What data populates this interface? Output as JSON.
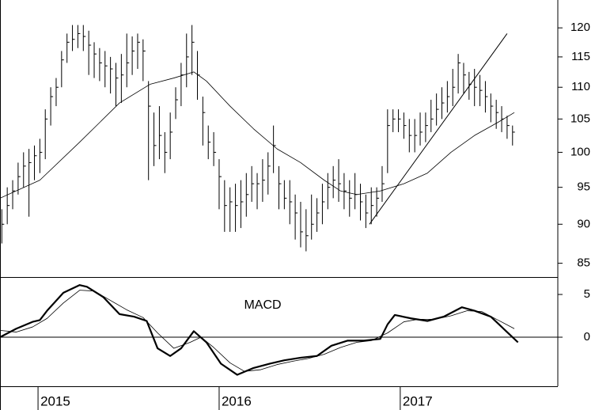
{
  "chart_data": [
    {
      "type": "ohlc",
      "log_scale": true,
      "color": "#000000",
      "xlim": [
        2014.79,
        2017.87
      ],
      "ylim": [
        83.3,
        125
      ],
      "yticks": [
        85,
        90,
        95,
        100,
        105,
        110,
        115,
        120
      ],
      "x": [
        2014.8,
        2014.83,
        2014.86,
        2014.89,
        2014.92,
        2014.95,
        2014.98,
        2015.01,
        2015.04,
        2015.07,
        2015.1,
        2015.13,
        2015.16,
        2015.19,
        2015.22,
        2015.25,
        2015.28,
        2015.31,
        2015.34,
        2015.37,
        2015.4,
        2015.43,
        2015.46,
        2015.49,
        2015.52,
        2015.55,
        2015.58,
        2015.61,
        2015.64,
        2015.67,
        2015.7,
        2015.73,
        2015.76,
        2015.79,
        2015.82,
        2015.85,
        2015.88,
        2015.91,
        2015.94,
        2015.97,
        2016,
        2016.03,
        2016.06,
        2016.09,
        2016.12,
        2016.15,
        2016.18,
        2016.21,
        2016.24,
        2016.27,
        2016.3,
        2016.33,
        2016.36,
        2016.39,
        2016.42,
        2016.45,
        2016.48,
        2016.51,
        2016.54,
        2016.57,
        2016.6,
        2016.63,
        2016.66,
        2016.69,
        2016.72,
        2016.75,
        2016.78,
        2016.81,
        2016.84,
        2016.87,
        2016.9,
        2016.93,
        2016.96,
        2016.99,
        2017.02,
        2017.05,
        2017.08,
        2017.11,
        2017.14,
        2017.17,
        2017.2,
        2017.23,
        2017.26,
        2017.29,
        2017.32,
        2017.35,
        2017.38,
        2017.41,
        2017.44,
        2017.47,
        2017.5,
        2017.53,
        2017.56,
        2017.59,
        2017.62
      ],
      "high": [
        92,
        95,
        96,
        98.5,
        100,
        100.5,
        101,
        102,
        106.5,
        110,
        111.5,
        116,
        119,
        120.5,
        120.5,
        120.5,
        119.5,
        117.5,
        116.5,
        116,
        115,
        114,
        115.5,
        119,
        118.5,
        119,
        118,
        111,
        106,
        107,
        103,
        106,
        110,
        114,
        119,
        120.5,
        116,
        108.5,
        104,
        103,
        99,
        96,
        95,
        95.5,
        96,
        97,
        98,
        97,
        99,
        100,
        104,
        98,
        96,
        96,
        94,
        93,
        92,
        94,
        93.5,
        95.5,
        97,
        98,
        99,
        97,
        96,
        97,
        95.5,
        94,
        95,
        95,
        98,
        106.5,
        106.5,
        106.5,
        106,
        105,
        105,
        106,
        106,
        108,
        109,
        110,
        111,
        113,
        115.5,
        114,
        112.5,
        113,
        112,
        111,
        109,
        108,
        107,
        105.5,
        104
      ],
      "low": [
        87.5,
        90,
        92,
        94,
        95,
        91,
        96,
        97,
        99,
        104,
        107,
        110,
        114,
        116,
        116.5,
        116,
        112,
        111.5,
        111,
        110,
        109,
        107,
        107.5,
        110,
        112,
        113,
        111,
        96,
        98,
        99,
        97,
        99,
        105,
        107,
        110,
        112,
        108,
        101,
        99,
        98,
        92,
        89,
        89,
        89,
        89.5,
        91,
        93,
        92,
        93,
        94,
        97,
        92,
        92,
        90,
        88,
        87,
        86.5,
        88,
        89,
        90,
        92,
        93.5,
        93,
        92,
        91,
        92,
        90.5,
        89.5,
        90,
        91,
        93,
        97,
        103,
        103,
        102,
        100,
        100,
        101,
        101.5,
        103,
        104,
        105,
        106,
        107,
        109,
        109,
        108,
        107,
        107,
        106,
        104.5,
        103.5,
        103,
        102,
        101
      ],
      "close": [
        90,
        92.5,
        94.5,
        96.5,
        98,
        98.5,
        99.5,
        100,
        105,
        108.5,
        110,
        114.5,
        117.5,
        118,
        119,
        118.5,
        117,
        115.5,
        114,
        113.5,
        113,
        111.5,
        112,
        114,
        116,
        117.5,
        116,
        107,
        101,
        102.5,
        100,
        103,
        108,
        112,
        115,
        117.5,
        112,
        106,
        101.5,
        100,
        96.5,
        92.5,
        93,
        92.5,
        93,
        94,
        95.5,
        95.5,
        96,
        98,
        101,
        95.5,
        93.5,
        93,
        91.5,
        89,
        88.5,
        90,
        91.5,
        93,
        95,
        96,
        95.5,
        94.5,
        93.5,
        94,
        93,
        91.5,
        92.5,
        93.5,
        95.5,
        104,
        105,
        105,
        104,
        102.5,
        102.5,
        103,
        104,
        105,
        106.5,
        107.5,
        108.5,
        110,
        114,
        112,
        110.5,
        110,
        109.5,
        108.5,
        107,
        106,
        105,
        104,
        103
      ],
      "overlays": [
        {
          "color": "#000000",
          "line_width": 0.8,
          "x": [
            2014.79,
            2015.01,
            2015.23,
            2015.45,
            2015.62,
            2015.75,
            2015.86,
            2015.93,
            2016.06,
            2016.19,
            2016.32,
            2016.45,
            2016.58,
            2016.67,
            2016.76,
            2016.89,
            2017.02,
            2017.15,
            2017.28,
            2017.41,
            2017.54,
            2017.63
          ],
          "values": [
            93.5,
            96,
            101.5,
            107.5,
            110.5,
            111.5,
            112.5,
            111,
            107,
            103.5,
            100.5,
            98.5,
            96,
            94.5,
            94,
            94.5,
            95.5,
            97,
            100,
            102.5,
            104.5,
            106
          ]
        },
        {
          "color": "#000000",
          "line_width": 1,
          "x": [
            2016.83,
            2017.59
          ],
          "values": [
            90,
            119
          ]
        }
      ]
    },
    {
      "type": "line",
      "annotation": "MACD",
      "zero_line": true,
      "xlim": [
        2014.79,
        2017.87
      ],
      "xticks": [
        2015,
        2016,
        2017
      ],
      "ylim": [
        -5.74,
        7.04
      ],
      "yticks": [
        5,
        0
      ],
      "series": [
        {
          "color": "#000000",
          "line_width": 2.2,
          "x": [
            2014.79,
            2014.88,
            2014.97,
            2015.01,
            2015.05,
            2015.14,
            2015.23,
            2015.27,
            2015.36,
            2015.45,
            2015.53,
            2015.6,
            2015.66,
            2015.73,
            2015.79,
            2015.86,
            2015.93,
            2016.01,
            2016.1,
            2016.19,
            2016.28,
            2016.36,
            2016.45,
            2016.54,
            2016.62,
            2016.71,
            2016.8,
            2016.89,
            2016.93,
            2016.97,
            2017.06,
            2017.15,
            2017.24,
            2017.34,
            2017.41,
            2017.5,
            2017.59,
            2017.65
          ],
          "values": [
            0,
            1,
            1.8,
            2,
            3.1,
            5.2,
            6.1,
            5.9,
            4.7,
            2.7,
            2.4,
            1.9,
            -1.3,
            -2.2,
            -1.3,
            0.7,
            -0.6,
            -3.1,
            -4.4,
            -3.6,
            -3.1,
            -2.7,
            -2.4,
            -2.2,
            -1,
            -0.4,
            -0.4,
            -0.2,
            1.5,
            2.6,
            2.2,
            1.9,
            2.4,
            3.5,
            3.1,
            2.4,
            0.6,
            -0.6
          ]
        },
        {
          "color": "#000000",
          "line_width": 0.8,
          "x": [
            2014.79,
            2014.88,
            2014.97,
            2015.05,
            2015.14,
            2015.23,
            2015.31,
            2015.4,
            2015.49,
            2015.58,
            2015.66,
            2015.75,
            2015.84,
            2015.9,
            2015.97,
            2016.06,
            2016.14,
            2016.23,
            2016.32,
            2016.41,
            2016.49,
            2016.58,
            2016.67,
            2016.76,
            2016.84,
            2016.93,
            2017.02,
            2017.1,
            2017.19,
            2017.28,
            2017.37,
            2017.45,
            2017.54,
            2017.63
          ],
          "values": [
            0.8,
            0.6,
            1.2,
            2.2,
            4,
            5.5,
            5.4,
            4.3,
            3.2,
            2.3,
            0.5,
            -1.3,
            -0.6,
            0,
            -1.2,
            -3,
            -4,
            -3.8,
            -3.2,
            -2.8,
            -2.5,
            -2,
            -1.2,
            -0.6,
            -0.4,
            0.5,
            1.8,
            2.1,
            2.1,
            2.5,
            3.1,
            3,
            2,
            1
          ]
        }
      ]
    }
  ]
}
